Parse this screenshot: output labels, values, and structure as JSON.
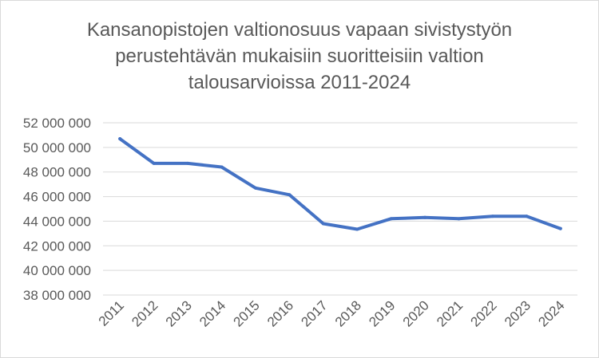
{
  "chart_data": {
    "type": "line",
    "title_lines": [
      "Kansanopistojen valtionosuus vapaan sivistystyön",
      "perustehtävän mukaisiin suoritteisiin valtion",
      "talousarvioissa 2011-2024"
    ],
    "categories": [
      "2011",
      "2012",
      "2013",
      "2014",
      "2015",
      "2016",
      "2017",
      "2018",
      "2019",
      "2020",
      "2021",
      "2022",
      "2023",
      "2024"
    ],
    "series": [
      {
        "values": [
          50700000,
          48700000,
          48700000,
          48400000,
          46700000,
          46150000,
          43800000,
          43350000,
          44200000,
          44300000,
          44200000,
          44400000,
          44400000,
          43400000
        ]
      }
    ],
    "y_ticks": [
      "38 000 000",
      "40 000 000",
      "42 000 000",
      "44 000 000",
      "46 000 000",
      "48 000 000",
      "50 000 000",
      "52 000 000"
    ],
    "ylim": [
      38000000,
      52000000
    ],
    "grid": true,
    "line_color": "#4472c4",
    "grid_color": "#d9d9d9",
    "text_color": "#595959"
  }
}
